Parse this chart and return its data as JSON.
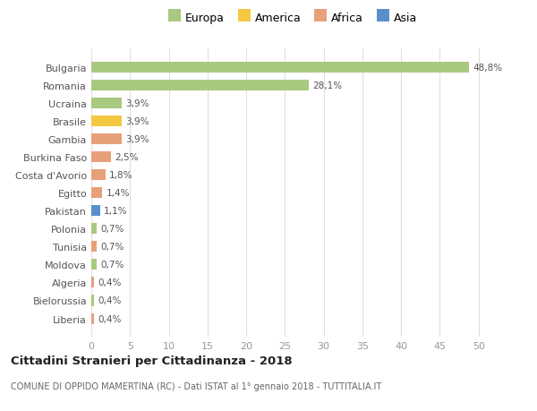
{
  "countries": [
    "Bulgaria",
    "Romania",
    "Ucraina",
    "Brasile",
    "Gambia",
    "Burkina Faso",
    "Costa d'Avorio",
    "Egitto",
    "Pakistan",
    "Polonia",
    "Tunisia",
    "Moldova",
    "Algeria",
    "Bielorussia",
    "Liberia"
  ],
  "values": [
    48.8,
    28.1,
    3.9,
    3.9,
    3.9,
    2.5,
    1.8,
    1.4,
    1.1,
    0.7,
    0.7,
    0.7,
    0.4,
    0.4,
    0.4
  ],
  "labels": [
    "48,8%",
    "28,1%",
    "3,9%",
    "3,9%",
    "3,9%",
    "2,5%",
    "1,8%",
    "1,4%",
    "1,1%",
    "0,7%",
    "0,7%",
    "0,7%",
    "0,4%",
    "0,4%",
    "0,4%"
  ],
  "continents": [
    "Europa",
    "Europa",
    "Europa",
    "America",
    "Africa",
    "Africa",
    "Africa",
    "Africa",
    "Asia",
    "Europa",
    "Africa",
    "Europa",
    "Africa",
    "Europa",
    "Africa"
  ],
  "continent_colors": {
    "Europa": "#a8c97f",
    "America": "#f5c842",
    "Africa": "#e8a07a",
    "Asia": "#5b8fcc"
  },
  "legend_entries": [
    "Europa",
    "America",
    "Africa",
    "Asia"
  ],
  "legend_colors": [
    "#a8c97f",
    "#f5c842",
    "#e8a07a",
    "#5b8fcc"
  ],
  "background_color": "#ffffff",
  "grid_color": "#e0e0e0",
  "title": "Cittadini Stranieri per Cittadinanza - 2018",
  "subtitle": "COMUNE DI OPPIDO MAMERTINA (RC) - Dati ISTAT al 1° gennaio 2018 - TUTTITALIA.IT",
  "xlim": [
    0,
    52
  ],
  "xticks": [
    0,
    5,
    10,
    15,
    20,
    25,
    30,
    35,
    40,
    45,
    50
  ]
}
